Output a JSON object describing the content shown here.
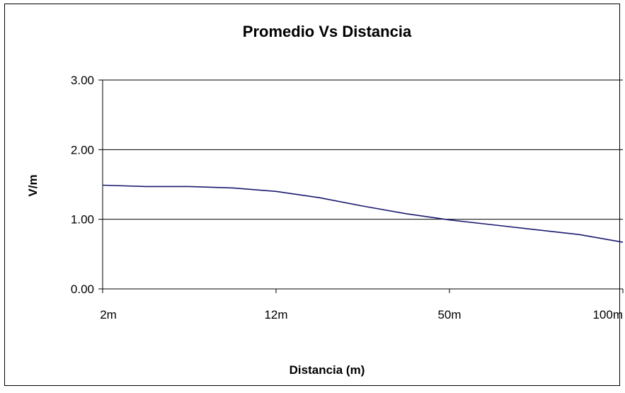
{
  "chart_data": {
    "type": "line",
    "title": "Promedio Vs Distancia",
    "xlabel": "Distancia (m)",
    "ylabel": "V/m",
    "categories": [
      "2m",
      "12m",
      "50m",
      "100m"
    ],
    "y_ticks": [
      "0.00",
      "1.00",
      "2.00",
      "3.00"
    ],
    "ylim": [
      0,
      3
    ],
    "grid": true,
    "legend": "none",
    "series": [
      {
        "color": "#1a1a6e",
        "points": [
          {
            "x": 0.0,
            "y": 1.49
          },
          {
            "x": 0.25,
            "y": 1.47
          },
          {
            "x": 0.5,
            "y": 1.47
          },
          {
            "x": 0.75,
            "y": 1.45
          },
          {
            "x": 1.0,
            "y": 1.4
          },
          {
            "x": 1.25,
            "y": 1.31
          },
          {
            "x": 1.5,
            "y": 1.19
          },
          {
            "x": 1.75,
            "y": 1.08
          },
          {
            "x": 2.0,
            "y": 0.99
          },
          {
            "x": 2.25,
            "y": 0.92
          },
          {
            "x": 2.5,
            "y": 0.85
          },
          {
            "x": 2.75,
            "y": 0.78
          },
          {
            "x": 3.0,
            "y": 0.67
          }
        ]
      }
    ]
  }
}
